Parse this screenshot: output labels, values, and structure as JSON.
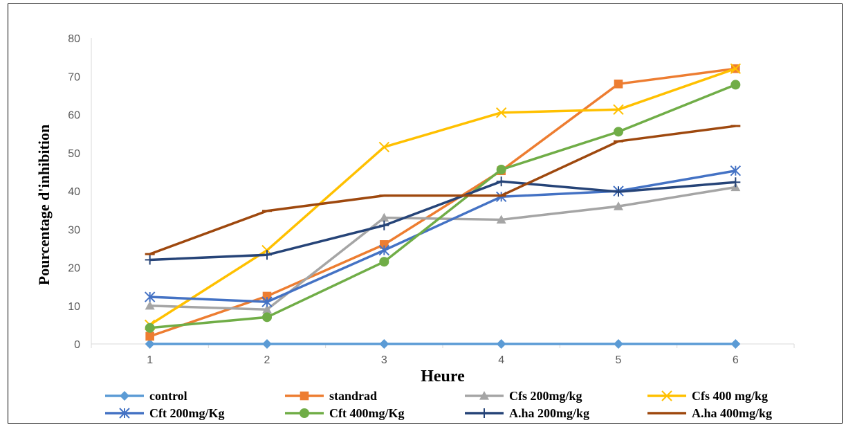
{
  "chart_data": {
    "type": "line",
    "title": "",
    "xlabel": "Heure",
    "ylabel": "Pourcentage d'inhibition",
    "x": [
      1,
      2,
      3,
      4,
      5,
      6
    ],
    "y_ticks": [
      0,
      10,
      20,
      30,
      40,
      50,
      60,
      70,
      80
    ],
    "ylim": [
      0,
      80
    ],
    "grid": false,
    "legend_position": "bottom",
    "series": [
      {
        "name": "control",
        "color": "#5B9BD5",
        "marker": "diamond",
        "values": [
          0,
          0,
          0,
          0,
          0,
          0
        ]
      },
      {
        "name": "standrad",
        "color": "#ED7D31",
        "marker": "square",
        "values": [
          2,
          12.5,
          26,
          45.3,
          68,
          72
        ]
      },
      {
        "name": "Cfs 200mg/kg",
        "color": "#A5A5A5",
        "marker": "triangle",
        "values": [
          10,
          9,
          33,
          32.5,
          36,
          41
        ]
      },
      {
        "name": "Cfs 400 mg/kg",
        "color": "#FFC000",
        "marker": "x",
        "values": [
          5,
          24.5,
          51.5,
          60.5,
          61.3,
          72
        ]
      },
      {
        "name": "Cft 200mg/Kg",
        "color": "#4472C4",
        "marker": "asterisk",
        "values": [
          12.3,
          11,
          24.5,
          38.5,
          40,
          45.3
        ]
      },
      {
        "name": "Cft 400mg/Kg",
        "color": "#70AD47",
        "marker": "circle",
        "values": [
          4.2,
          7,
          21.5,
          45.6,
          55.5,
          67.8
        ]
      },
      {
        "name": "A.ha 200mg/kg",
        "color": "#264478",
        "marker": "plus",
        "values": [
          22,
          23.3,
          31,
          42.5,
          39.8,
          42.3
        ]
      },
      {
        "name": "A.ha 400mg/kg",
        "color": "#9E480E",
        "marker": "dash",
        "values": [
          23.5,
          34.8,
          38.8,
          38.8,
          53,
          57
        ]
      }
    ]
  }
}
